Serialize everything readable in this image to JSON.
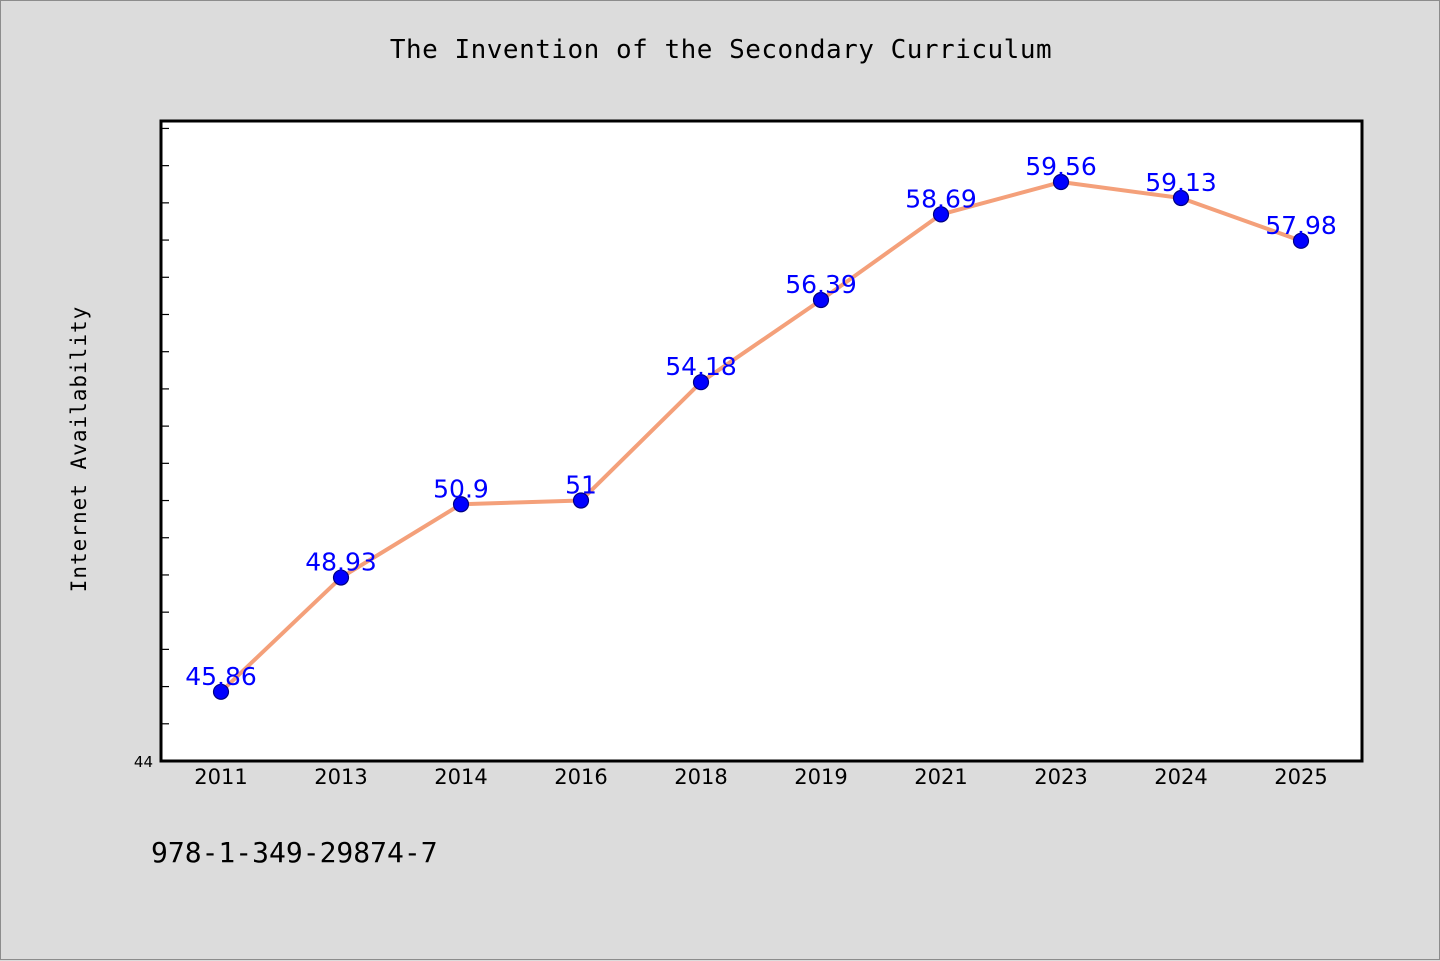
{
  "chart_data": {
    "type": "line",
    "title": "The Invention of the Secondary Curriculum",
    "xlabel": "",
    "ylabel": "Internet Availability",
    "categories": [
      "2011",
      "2013",
      "2014",
      "2016",
      "2018",
      "2019",
      "2021",
      "2023",
      "2024",
      "2025"
    ],
    "series": [
      {
        "values": [
          45.86,
          48.93,
          50.9,
          51,
          54.18,
          56.39,
          58.69,
          59.56,
          59.13,
          57.98
        ],
        "labels": [
          "45.86",
          "48.93",
          "50.9",
          "51",
          "54.18",
          "56.39",
          "58.69",
          "59.56",
          "59.13",
          "57.98"
        ]
      }
    ],
    "ylim": [
      44,
      61.2
    ],
    "y_min_label": "44",
    "minor_tick_step": 1,
    "grid": false,
    "legend": "none",
    "colors": {
      "line": "#f4a07a",
      "marker": "#0000ff",
      "marker_edge": "#000080",
      "data_label": "#0000ff",
      "plot_bg": "#ffffff",
      "figure_bg": "#dcdcdc"
    }
  },
  "footer": {
    "code": "978-1-349-29874-7"
  }
}
